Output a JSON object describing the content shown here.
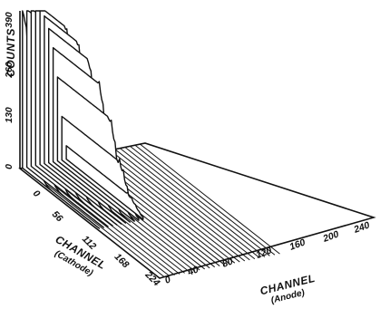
{
  "chart_data": {
    "type": "area",
    "z_axis": {
      "label": "COUNTS",
      "ticks": [
        "0",
        "130",
        "260",
        "390"
      ]
    },
    "cathode_axis": {
      "label": "CHANNEL",
      "sublabel": "(Cathode)",
      "ticks": [
        "0",
        "56",
        "112",
        "168",
        "224"
      ]
    },
    "anode_axis": {
      "label": "CHANNEL",
      "sublabel": "(Anode)",
      "ticks": [
        "0",
        "40",
        "80",
        "120",
        "160",
        "200",
        "240"
      ]
    },
    "series": [
      {
        "peak_cathode_channel": 0,
        "max_counts": 470
      },
      {
        "peak_cathode_channel": 10,
        "max_counts": 470
      },
      {
        "peak_cathode_channel": 20,
        "max_counts": 470
      },
      {
        "peak_cathode_channel": 30,
        "max_counts": 470
      },
      {
        "peak_cathode_channel": 40,
        "max_counts": 470
      },
      {
        "peak_cathode_channel": 52,
        "max_counts": 440
      },
      {
        "peak_cathode_channel": 62,
        "max_counts": 400
      },
      {
        "peak_cathode_channel": 72,
        "max_counts": 340
      },
      {
        "peak_cathode_channel": 82,
        "max_counts": 250
      },
      {
        "peak_cathode_channel": 90,
        "max_counts": 130
      },
      {
        "peak_cathode_channel": 98,
        "max_counts": 40
      }
    ],
    "num_anode_traces": 25,
    "colors": {
      "line": "#111111",
      "background": "#ffffff"
    }
  }
}
